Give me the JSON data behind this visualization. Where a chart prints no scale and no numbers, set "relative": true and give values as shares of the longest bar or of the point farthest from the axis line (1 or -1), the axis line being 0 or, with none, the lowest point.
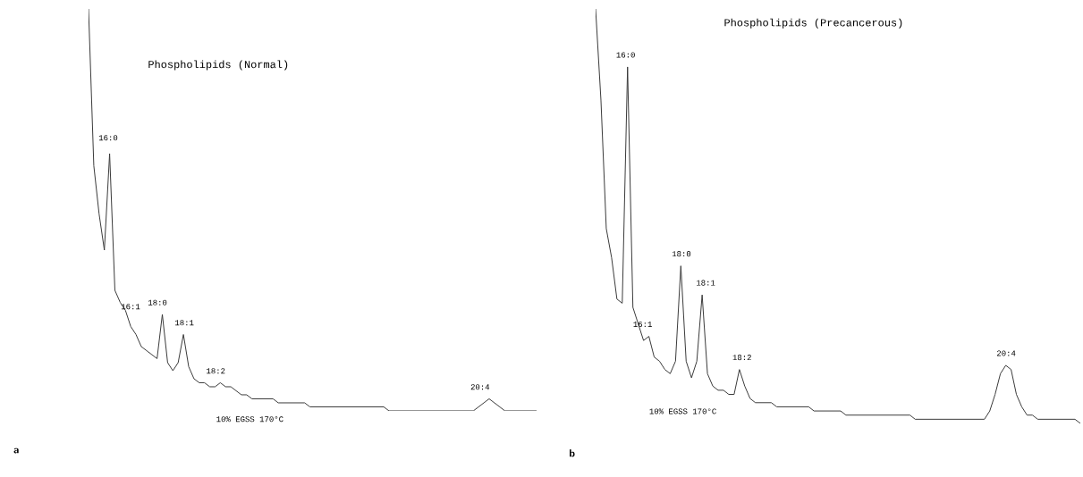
{
  "chart_data": [
    {
      "type": "line",
      "relative": true,
      "title": "Phospholipids (Normal)",
      "categories": [
        null,
        null,
        null,
        null,
        null,
        null,
        null,
        null,
        null,
        null,
        null,
        null,
        null,
        null,
        null,
        null,
        null,
        null,
        null,
        null,
        null,
        null,
        null,
        null,
        null,
        null,
        null,
        null,
        null,
        null,
        null,
        null,
        null,
        null,
        null,
        null,
        null,
        null,
        null,
        null,
        null,
        null,
        null,
        null,
        null,
        null,
        null,
        null,
        null,
        null,
        null,
        null,
        null,
        null,
        null,
        null,
        null,
        null,
        null,
        null,
        null,
        null,
        null,
        null,
        null,
        null,
        null,
        null,
        null,
        null,
        null,
        null,
        null,
        null,
        null,
        null,
        null,
        null,
        null,
        null,
        null,
        null,
        null,
        null,
        null,
        null
      ],
      "series": [
        {
          "color": "#3a3a3a",
          "values": [
            1.0,
            0.61,
            0.49,
            0.4,
            0.64,
            0.3,
            0.27,
            0.25,
            0.21,
            0.19,
            0.16,
            0.15,
            0.14,
            0.13,
            0.24,
            0.12,
            0.1,
            0.12,
            0.19,
            0.11,
            0.08,
            0.07,
            0.07,
            0.06,
            0.06,
            0.07,
            0.06,
            0.06,
            0.05,
            0.04,
            0.04,
            0.03,
            0.03,
            0.03,
            0.03,
            0.03,
            0.02,
            0.02,
            0.02,
            0.02,
            0.02,
            0.02,
            0.01,
            0.01,
            0.01,
            0.01,
            0.01,
            0.01,
            0.01,
            0.01,
            0.01,
            0.01,
            0.01,
            0.01,
            0.01,
            0.01,
            0.01,
            0,
            0,
            0,
            0,
            0,
            0,
            0,
            0,
            0,
            0,
            0,
            0,
            0,
            0,
            0,
            0,
            0,
            0.01,
            0.02,
            0.03,
            0.02,
            0.01,
            0,
            0,
            0,
            0,
            0,
            0,
            0
          ]
        }
      ],
      "annotations": [
        "16:0",
        "16:1",
        "18:0",
        "18:1",
        "18:2",
        "20:4",
        "10% EGSS 170°C",
        "a"
      ]
    },
    {
      "type": "line",
      "relative": true,
      "title": "Phospholipids (Precancerous)",
      "categories": [
        null,
        null,
        null,
        null,
        null,
        null,
        null,
        null,
        null,
        null,
        null,
        null,
        null,
        null,
        null,
        null,
        null,
        null,
        null,
        null,
        null,
        null,
        null,
        null,
        null,
        null,
        null,
        null,
        null,
        null,
        null,
        null,
        null,
        null,
        null,
        null,
        null,
        null,
        null,
        null,
        null,
        null,
        null,
        null,
        null,
        null,
        null,
        null,
        null,
        null,
        null,
        null,
        null,
        null,
        null,
        null,
        null,
        null,
        null,
        null,
        null,
        null,
        null,
        null,
        null,
        null,
        null,
        null,
        null,
        null,
        null,
        null,
        null,
        null,
        null,
        null,
        null,
        null,
        null,
        null,
        null,
        null,
        null,
        null,
        null,
        null,
        null,
        null,
        null,
        null,
        null,
        null
      ],
      "series": [
        {
          "color": "#3a3a3a",
          "values": [
            1.0,
            0.78,
            0.47,
            0.4,
            0.3,
            0.29,
            0.86,
            0.28,
            0.24,
            0.2,
            0.21,
            0.16,
            0.15,
            0.13,
            0.12,
            0.15,
            0.38,
            0.15,
            0.11,
            0.15,
            0.31,
            0.12,
            0.09,
            0.08,
            0.08,
            0.07,
            0.07,
            0.13,
            0.09,
            0.06,
            0.05,
            0.05,
            0.05,
            0.05,
            0.04,
            0.04,
            0.04,
            0.04,
            0.04,
            0.04,
            0.04,
            0.03,
            0.03,
            0.03,
            0.03,
            0.03,
            0.03,
            0.02,
            0.02,
            0.02,
            0.02,
            0.02,
            0.02,
            0.02,
            0.02,
            0.02,
            0.02,
            0.02,
            0.02,
            0.02,
            0.01,
            0.01,
            0.01,
            0.01,
            0.01,
            0.01,
            0.01,
            0.01,
            0.01,
            0.01,
            0.01,
            0.01,
            0.01,
            0.01,
            0.03,
            0.07,
            0.12,
            0.14,
            0.13,
            0.07,
            0.04,
            0.02,
            0.02,
            0.01,
            0.01,
            0.01,
            0.01,
            0.01,
            0.01,
            0.01,
            0.01,
            0
          ]
        }
      ],
      "annotations": [
        "16:0",
        "16:1",
        "18:0",
        "18:1",
        "18:2",
        "20:4",
        "10% EGSS 170°C",
        "b"
      ]
    }
  ]
}
